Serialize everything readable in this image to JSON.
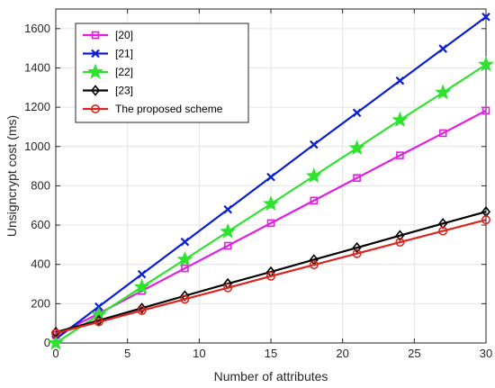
{
  "chart_data": {
    "type": "line",
    "xlabel": "Number of attributes",
    "ylabel": "Unsigncrypt cost (ms)",
    "xlim": [
      0,
      30
    ],
    "ylim": [
      0,
      1700
    ],
    "xticks": [
      0,
      5,
      10,
      15,
      20,
      25,
      30
    ],
    "yticks": [
      0,
      200,
      400,
      600,
      800,
      1000,
      1200,
      1400,
      1600
    ],
    "grid": true,
    "legend_position": "top-left",
    "x": [
      0,
      3,
      6,
      9,
      12,
      15,
      18,
      21,
      24,
      27,
      30
    ],
    "series": [
      {
        "name": "[20]",
        "color": "#e31ee3",
        "marker": "square",
        "values": [
          40,
          150,
          265,
          380,
          495,
          610,
          725,
          840,
          955,
          1068,
          1183
        ]
      },
      {
        "name": "[21]",
        "color": "#0a1ed2",
        "marker": "x",
        "values": [
          20,
          185,
          350,
          515,
          680,
          845,
          1010,
          1172,
          1335,
          1498,
          1660
        ]
      },
      {
        "name": "[22]",
        "color": "#2ee32e",
        "marker": "star",
        "values": [
          0,
          143,
          285,
          425,
          567,
          708,
          850,
          992,
          1135,
          1275,
          1417
        ]
      },
      {
        "name": "[23]",
        "color": "#000000",
        "marker": "diamond",
        "values": [
          55,
          115,
          177,
          240,
          302,
          362,
          424,
          485,
          547,
          608,
          668
        ]
      },
      {
        "name": "The proposed scheme",
        "color": "#d9261e",
        "marker": "circle",
        "values": [
          50,
          107,
          165,
          223,
          281,
          340,
          398,
          455,
          513,
          570,
          627
        ]
      }
    ]
  }
}
